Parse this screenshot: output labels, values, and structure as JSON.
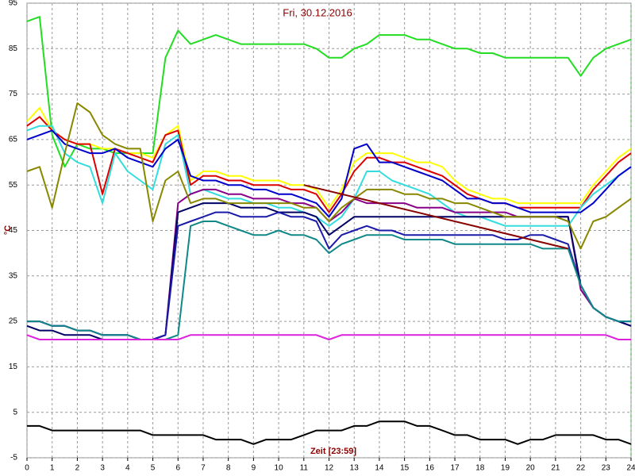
{
  "chart_data": {
    "type": "line",
    "title": "Fri, 30.12.2016",
    "ylabel": "°C",
    "xlabel": "Zeit [23:59]",
    "xlim": [
      0,
      24
    ],
    "xticks": [
      0,
      1,
      2,
      3,
      4,
      5,
      6,
      7,
      8,
      9,
      10,
      11,
      12,
      13,
      14,
      15,
      16,
      17,
      18,
      19,
      20,
      21,
      22,
      23,
      24
    ],
    "ylim": [
      -5,
      95
    ],
    "yticks": [
      -5,
      5,
      15,
      25,
      35,
      45,
      55,
      65,
      75,
      85,
      95
    ],
    "grid": true,
    "x": [
      0,
      0.5,
      1,
      1.5,
      2,
      2.5,
      3,
      3.5,
      4,
      4.5,
      5,
      5.5,
      6,
      6.5,
      7,
      7.5,
      8,
      8.5,
      9,
      9.5,
      10,
      10.5,
      11,
      11.5,
      12,
      12.5,
      13,
      13.5,
      14,
      14.5,
      15,
      15.5,
      16,
      16.5,
      17,
      17.5,
      18,
      18.5,
      19,
      19.5,
      20,
      20.5,
      21,
      21.5,
      22,
      22.5,
      23,
      23.5,
      24
    ],
    "series": [
      {
        "color": "#22dd22",
        "values": [
          91,
          92,
          66,
          59,
          64,
          63,
          63,
          62,
          62,
          62,
          62,
          83,
          89,
          86,
          87,
          88,
          87,
          86,
          86,
          86,
          86,
          86,
          86,
          85,
          83,
          83,
          85,
          86,
          88,
          88,
          88,
          87,
          87,
          86,
          85,
          85,
          84,
          84,
          83,
          83,
          83,
          83,
          83,
          83,
          79,
          83,
          85,
          86,
          87
        ]
      },
      {
        "color": "#ffff00",
        "values": [
          69,
          72,
          67,
          65,
          64,
          64,
          63,
          63,
          62,
          62,
          61,
          66,
          68,
          56,
          58,
          58,
          57,
          57,
          56,
          56,
          56,
          55,
          55,
          54,
          50,
          54,
          60,
          62,
          62,
          62,
          61,
          60,
          60,
          59,
          56,
          54,
          53,
          52,
          52,
          51,
          51,
          51,
          51,
          51,
          51,
          55,
          58,
          61,
          63
        ]
      },
      {
        "color": "#dd0000",
        "values": [
          68,
          70,
          67,
          65,
          64,
          64,
          53,
          63,
          62,
          61,
          60,
          66,
          67,
          55,
          57,
          57,
          56,
          56,
          55,
          55,
          55,
          54,
          54,
          53,
          49,
          53,
          58,
          61,
          61,
          60,
          60,
          59,
          58,
          57,
          55,
          53,
          52,
          51,
          51,
          50,
          50,
          50,
          50,
          50,
          50,
          54,
          57,
          60,
          62
        ]
      },
      {
        "color": "#33dddd",
        "values": [
          67,
          68,
          68,
          62,
          60,
          59,
          51,
          62,
          58,
          56,
          54,
          64,
          66,
          53,
          54,
          53,
          52,
          52,
          51,
          51,
          50,
          50,
          49,
          48,
          46,
          48,
          52,
          58,
          58,
          56,
          55,
          54,
          53,
          51,
          49,
          48,
          48,
          47,
          46,
          46,
          46,
          46,
          46,
          46,
          50,
          53,
          55,
          57,
          59
        ]
      },
      {
        "color": "#0000cc",
        "values": [
          65,
          66,
          67,
          64,
          63,
          62,
          62,
          63,
          61,
          60,
          59,
          63,
          65,
          57,
          56,
          56,
          55,
          55,
          54,
          54,
          53,
          53,
          52,
          51,
          48,
          52,
          63,
          64,
          60,
          60,
          59,
          58,
          57,
          56,
          54,
          52,
          52,
          51,
          51,
          50,
          49,
          49,
          49,
          49,
          49,
          51,
          54,
          57,
          59
        ]
      },
      {
        "color": "#880088",
        "values": [
          25,
          25,
          24,
          24,
          23,
          23,
          22,
          22,
          22,
          21,
          21,
          22,
          51,
          53,
          54,
          54,
          53,
          53,
          52,
          52,
          52,
          51,
          51,
          50,
          47,
          49,
          52,
          51,
          51,
          51,
          51,
          50,
          50,
          50,
          49,
          49,
          49,
          49,
          49,
          48,
          48,
          48,
          48,
          48,
          32,
          28,
          26,
          25,
          24
        ]
      },
      {
        "color": "#000066",
        "values": [
          24,
          23,
          23,
          22,
          22,
          22,
          21,
          21,
          21,
          21,
          21,
          22,
          49,
          50,
          51,
          51,
          51,
          50,
          50,
          50,
          49,
          49,
          49,
          48,
          44,
          46,
          48,
          48,
          48,
          48,
          48,
          48,
          48,
          48,
          48,
          48,
          48,
          48,
          48,
          48,
          48,
          48,
          48,
          48,
          33,
          28,
          26,
          25,
          24
        ]
      },
      {
        "color": "#1a1aaa",
        "values": [
          25,
          25,
          24,
          24,
          23,
          23,
          22,
          22,
          22,
          21,
          21,
          22,
          46,
          47,
          48,
          49,
          49,
          48,
          48,
          48,
          49,
          48,
          48,
          47,
          41,
          44,
          45,
          46,
          45,
          45,
          44,
          44,
          44,
          44,
          44,
          44,
          44,
          44,
          43,
          43,
          44,
          44,
          43,
          42,
          33,
          28,
          26,
          25,
          25
        ]
      },
      {
        "color": "#118888",
        "values": [
          25,
          25,
          24,
          24,
          23,
          23,
          22,
          22,
          22,
          21,
          21,
          21,
          22,
          46,
          47,
          47,
          46,
          45,
          44,
          44,
          45,
          44,
          44,
          43,
          40,
          42,
          43,
          44,
          44,
          44,
          43,
          43,
          43,
          43,
          42,
          42,
          42,
          42,
          42,
          42,
          42,
          41,
          41,
          41,
          33,
          28,
          26,
          25,
          25
        ]
      },
      {
        "color": "#888800",
        "values": [
          58,
          59,
          50,
          62,
          73,
          71,
          66,
          64,
          63,
          63,
          47,
          56,
          58,
          51,
          52,
          52,
          51,
          51,
          51,
          51,
          51,
          51,
          50,
          50,
          47,
          50,
          52,
          54,
          54,
          54,
          53,
          53,
          52,
          52,
          51,
          51,
          50,
          49,
          48,
          48,
          48,
          48,
          48,
          47,
          41,
          47,
          48,
          50,
          52
        ]
      },
      {
        "color": "#dd22dd",
        "values": [
          22,
          21,
          21,
          21,
          21,
          21,
          21,
          21,
          21,
          21,
          21,
          21,
          21,
          22,
          22,
          22,
          22,
          22,
          22,
          22,
          22,
          22,
          22,
          22,
          21,
          22,
          22,
          22,
          22,
          22,
          22,
          22,
          22,
          22,
          22,
          22,
          22,
          22,
          22,
          22,
          22,
          22,
          22,
          22,
          22,
          22,
          22,
          21,
          21
        ]
      },
      {
        "color": "#000000",
        "values": [
          2,
          2,
          1,
          1,
          1,
          1,
          1,
          1,
          1,
          1,
          0,
          0,
          0,
          0,
          0,
          -1,
          -1,
          -1,
          -2,
          -1,
          -1,
          -1,
          0,
          1,
          1,
          1,
          2,
          2,
          3,
          3,
          3,
          2,
          2,
          1,
          0,
          0,
          -1,
          -1,
          -1,
          -2,
          -1,
          -1,
          0,
          0,
          0,
          0,
          -1,
          -1,
          -2
        ]
      },
      {
        "color": "#880000",
        "x": [
          11,
          21.5
        ],
        "values": [
          55,
          41
        ]
      }
    ]
  }
}
